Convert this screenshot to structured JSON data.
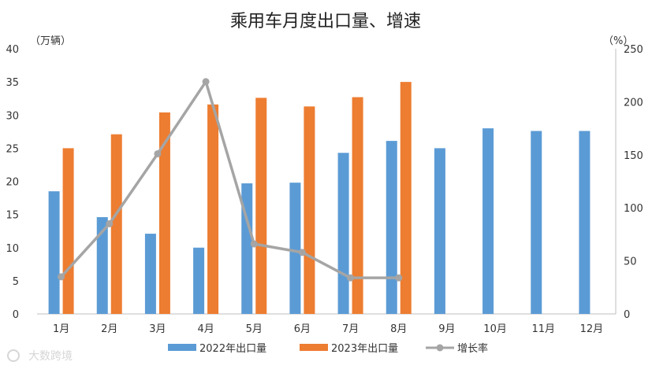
{
  "chart_data": {
    "type": "bar",
    "title": "乘用车月度出口量、增速",
    "left_unit": "（万辆）",
    "right_unit": "（%）",
    "categories": [
      "1月",
      "2月",
      "3月",
      "4月",
      "5月",
      "6月",
      "7月",
      "8月",
      "9月",
      "10月",
      "11月",
      "12月"
    ],
    "ylim": [
      0,
      40
    ],
    "y_ticks": [
      0,
      5,
      10,
      15,
      20,
      25,
      30,
      35,
      40
    ],
    "y2lim": [
      0,
      250
    ],
    "y2_ticks": [
      0,
      50,
      100,
      150,
      200,
      250
    ],
    "series": [
      {
        "name": "2022年出口量",
        "type": "bar",
        "axis": "left",
        "color": "#5B9BD5",
        "values": [
          18.5,
          14.6,
          12.1,
          10.0,
          19.7,
          19.8,
          24.3,
          26.1,
          25.0,
          28.0,
          27.6,
          27.6
        ]
      },
      {
        "name": "2023年出口量",
        "type": "bar",
        "axis": "left",
        "color": "#ED7D31",
        "values": [
          25.0,
          27.1,
          30.4,
          31.6,
          32.6,
          31.3,
          32.7,
          35.0,
          null,
          null,
          null,
          null
        ]
      },
      {
        "name": "增长率",
        "type": "line",
        "axis": "right",
        "color": "#A5A5A5",
        "values": [
          35,
          85,
          151,
          219,
          66,
          58,
          34,
          34,
          null,
          null,
          null,
          null
        ]
      }
    ],
    "legend_position": "bottom",
    "grid": false
  },
  "watermark": {
    "text": "大数跨境"
  }
}
